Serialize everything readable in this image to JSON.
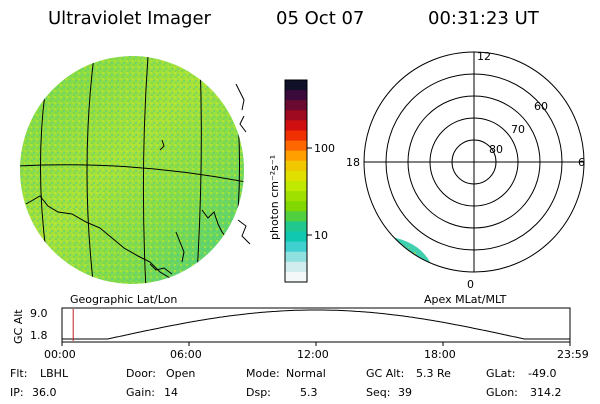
{
  "header": {
    "instrument": "Ultraviolet Imager",
    "date": "05 Oct 07",
    "time": "00:31:23 UT"
  },
  "colorbar": {
    "unit": "photon cm⁻²s⁻¹",
    "ticks": [
      "100",
      "10"
    ],
    "colors": [
      "#101028",
      "#3a0a3a",
      "#6a0a30",
      "#a00a20",
      "#d01010",
      "#f03000",
      "#ff6800",
      "#ffa000",
      "#f0c800",
      "#e0e000",
      "#c0e800",
      "#a0e000",
      "#80d800",
      "#50d040",
      "#20c890",
      "#10c8b0",
      "#40d0d0",
      "#90e0e0",
      "#d0ecec",
      "#f4f8f8"
    ]
  },
  "panels": {
    "left_caption": "Geographic Lat/Lon",
    "right_caption": "Apex MLat/MLT"
  },
  "polar": {
    "mlt_labels": {
      "top": "12",
      "left": "18",
      "right": "6",
      "bottom": "0"
    },
    "lat_labels": [
      "60",
      "70",
      "80"
    ]
  },
  "altitude": {
    "axis_label": "GC Alt",
    "y_ticks": [
      "9.0",
      "1.8"
    ],
    "time_ticks": [
      "00:00",
      "06:00",
      "12:00",
      "18:00",
      "23:59"
    ],
    "current_fraction": 0.022
  },
  "status": {
    "row1": [
      {
        "label": "Flt:",
        "value": "LBHL"
      },
      {
        "label": "Door:",
        "value": "Open"
      },
      {
        "label": "Mode:",
        "value": "Normal"
      },
      {
        "label": "GC Alt:",
        "value": "5.3 Re"
      },
      {
        "label": "GLat:",
        "value": "-49.0"
      }
    ],
    "row2": [
      {
        "label": "IP:",
        "value": "36.0"
      },
      {
        "label": "Gain:",
        "value": "14"
      },
      {
        "label": "Dsp:",
        "value": "5.3"
      },
      {
        "label": "Seq:",
        "value": "39"
      },
      {
        "label": "GLon:",
        "value": "314.2"
      }
    ]
  }
}
